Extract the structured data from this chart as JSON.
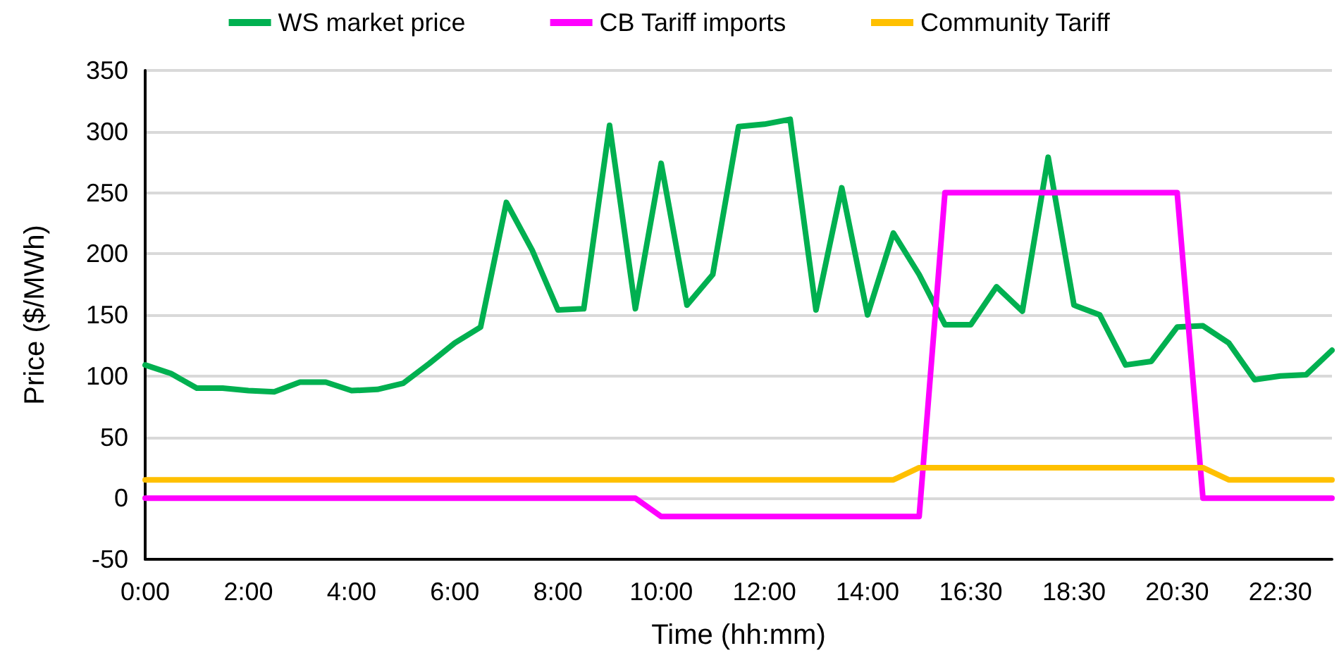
{
  "chart_data": {
    "type": "line",
    "xlabel": "Time (hh:mm)",
    "ylabel": "Price ($/MWh)",
    "categories": [
      "0:00",
      null,
      null,
      null,
      "2:00",
      null,
      null,
      null,
      "4:00",
      null,
      null,
      null,
      "6:00",
      null,
      null,
      null,
      "8:00",
      null,
      null,
      null,
      "10:00",
      null,
      null,
      null,
      "12:00",
      null,
      null,
      null,
      "14:00",
      null,
      null,
      null,
      "16:30",
      null,
      null,
      null,
      "18:30",
      null,
      null,
      null,
      "20:30",
      null,
      null,
      null,
      "22:30",
      null,
      null
    ],
    "series": [
      {
        "name": "WS market price",
        "color": "#00b050",
        "values": [
          109,
          102,
          90,
          90,
          88,
          87,
          95,
          95,
          88,
          89,
          94,
          110,
          127,
          140,
          242,
          203,
          154,
          155,
          305,
          155,
          274,
          158,
          183,
          304,
          306,
          310,
          154,
          254,
          150,
          217,
          183,
          142,
          142,
          173,
          153,
          279,
          158,
          150,
          109,
          112,
          140,
          141,
          127,
          97,
          100,
          101,
          121
        ]
      },
      {
        "name": "CB Tariff imports",
        "color": "#ff00ff",
        "values": [
          0,
          0,
          0,
          0,
          0,
          0,
          0,
          0,
          0,
          0,
          0,
          0,
          0,
          0,
          0,
          0,
          0,
          0,
          0,
          0,
          -15,
          -15,
          -15,
          -15,
          -15,
          -15,
          -15,
          -15,
          -15,
          -15,
          -15,
          250,
          250,
          250,
          250,
          250,
          250,
          250,
          250,
          250,
          250,
          0,
          0,
          0,
          0,
          0,
          0
        ]
      },
      {
        "name": "Community Tariff",
        "color": "#ffc000",
        "values": [
          15,
          15,
          15,
          15,
          15,
          15,
          15,
          15,
          15,
          15,
          15,
          15,
          15,
          15,
          15,
          15,
          15,
          15,
          15,
          15,
          15,
          15,
          15,
          15,
          15,
          15,
          15,
          15,
          15,
          15,
          25,
          25,
          25,
          25,
          25,
          25,
          25,
          25,
          25,
          25,
          25,
          25,
          15,
          15,
          15,
          15,
          15
        ]
      }
    ],
    "ylim": [
      -50,
      350
    ],
    "yticks": [
      -50,
      0,
      50,
      100,
      150,
      200,
      250,
      300,
      350
    ],
    "grid": "y",
    "legend": "top",
    "marker": "none",
    "line_style": "solid"
  }
}
